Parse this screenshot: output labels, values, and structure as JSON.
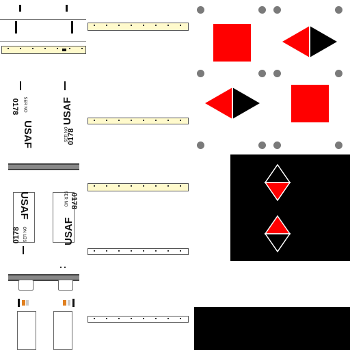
{
  "markings": {
    "service": "USAF",
    "ser_label": "SER NO",
    "serial": "0178"
  },
  "colors": {
    "red": "#ff0000",
    "black": "#000000",
    "cream": "#fffacc",
    "grey_dot": "#7a7a7a"
  },
  "icons": [
    "red-square-icon",
    "red-black-diamond-icon",
    "gray-dot-icon"
  ]
}
